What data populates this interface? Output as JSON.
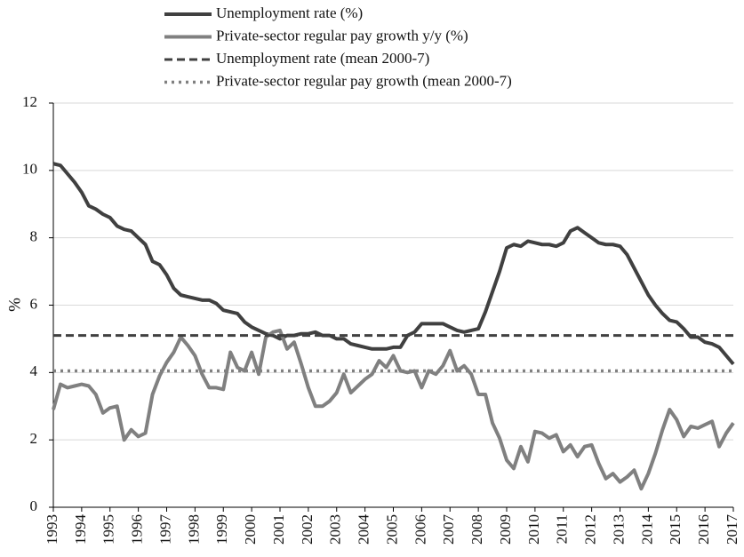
{
  "chart_data": {
    "type": "line",
    "ylabel": "%",
    "xlim": [
      1993,
      2017
    ],
    "xticks": [
      1993,
      1994,
      1995,
      1996,
      1997,
      1998,
      1999,
      2000,
      2001,
      2002,
      2003,
      2004,
      2005,
      2006,
      2007,
      2008,
      2009,
      2010,
      2011,
      2012,
      2013,
      2014,
      2015,
      2016,
      2017
    ],
    "ylim": [
      0,
      12
    ],
    "yticks": [
      0,
      2,
      4,
      6,
      8,
      10,
      12
    ],
    "grid": true,
    "x": [
      1993,
      1993.25,
      1993.5,
      1993.75,
      1994,
      1994.25,
      1994.5,
      1994.75,
      1995,
      1995.25,
      1995.5,
      1995.75,
      1996,
      1996.25,
      1996.5,
      1996.75,
      1997,
      1997.25,
      1997.5,
      1997.75,
      1998,
      1998.25,
      1998.5,
      1998.75,
      1999,
      1999.25,
      1999.5,
      1999.75,
      2000,
      2000.25,
      2000.5,
      2000.75,
      2001,
      2001.25,
      2001.5,
      2001.75,
      2002,
      2002.25,
      2002.5,
      2002.75,
      2003,
      2003.25,
      2003.5,
      2003.75,
      2004,
      2004.25,
      2004.5,
      2004.75,
      2005,
      2005.25,
      2005.5,
      2005.75,
      2006,
      2006.25,
      2006.5,
      2006.75,
      2007,
      2007.25,
      2007.5,
      2007.75,
      2008,
      2008.25,
      2008.5,
      2008.75,
      2009,
      2009.25,
      2009.5,
      2009.75,
      2010,
      2010.25,
      2010.5,
      2010.75,
      2011,
      2011.25,
      2011.5,
      2011.75,
      2012,
      2012.25,
      2012.5,
      2012.75,
      2013,
      2013.25,
      2013.5,
      2013.75,
      2014,
      2014.25,
      2014.5,
      2014.75,
      2015,
      2015.25,
      2015.5,
      2015.75,
      2016,
      2016.25,
      2016.5,
      2016.75,
      2017
    ],
    "series": [
      {
        "name": "Unemployment rate (%)",
        "color": "#404040",
        "style": "solid",
        "values": [
          10.2,
          10.15,
          9.9,
          9.65,
          9.35,
          8.95,
          8.85,
          8.7,
          8.6,
          8.35,
          8.25,
          8.2,
          8.0,
          7.8,
          7.3,
          7.2,
          6.9,
          6.5,
          6.3,
          6.25,
          6.2,
          6.15,
          6.15,
          6.05,
          5.85,
          5.8,
          5.75,
          5.5,
          5.35,
          5.25,
          5.15,
          5.1,
          5.0,
          5.1,
          5.1,
          5.15,
          5.15,
          5.2,
          5.1,
          5.1,
          5.0,
          5.0,
          4.85,
          4.8,
          4.75,
          4.7,
          4.7,
          4.7,
          4.75,
          4.75,
          5.1,
          5.2,
          5.45,
          5.45,
          5.45,
          5.45,
          5.35,
          5.25,
          5.2,
          5.25,
          5.3,
          5.8,
          6.4,
          7.0,
          7.7,
          7.8,
          7.75,
          7.9,
          7.85,
          7.8,
          7.8,
          7.75,
          7.85,
          8.2,
          8.3,
          8.15,
          8.0,
          7.85,
          7.8,
          7.8,
          7.75,
          7.5,
          7.1,
          6.7,
          6.3,
          6.0,
          5.75,
          5.55,
          5.5,
          5.3,
          5.05,
          5.05,
          4.9,
          4.85,
          4.75,
          4.5,
          4.25
        ]
      },
      {
        "name": "Private-sector regular pay growth y/y (%)",
        "color": "#808080",
        "style": "solid",
        "values": [
          2.9,
          3.65,
          3.55,
          3.6,
          3.65,
          3.6,
          3.35,
          2.8,
          2.95,
          3.0,
          2.0,
          2.3,
          2.1,
          2.2,
          3.35,
          3.9,
          4.3,
          4.6,
          5.05,
          4.8,
          4.5,
          3.95,
          3.55,
          3.55,
          3.5,
          4.6,
          4.15,
          4.05,
          4.6,
          3.95,
          5.05,
          5.2,
          5.25,
          4.7,
          4.9,
          4.25,
          3.55,
          3.0,
          3.0,
          3.15,
          3.4,
          3.95,
          3.4,
          3.6,
          3.8,
          3.95,
          4.35,
          4.15,
          4.5,
          4.05,
          4.0,
          4.05,
          3.55,
          4.05,
          3.95,
          4.2,
          4.65,
          4.05,
          4.2,
          3.95,
          3.35,
          3.35,
          2.5,
          2.05,
          1.4,
          1.15,
          1.8,
          1.35,
          2.25,
          2.2,
          2.05,
          2.15,
          1.65,
          1.85,
          1.5,
          1.8,
          1.85,
          1.3,
          0.85,
          1.0,
          0.75,
          0.9,
          1.1,
          0.55,
          1.0,
          1.6,
          2.3,
          2.9,
          2.6,
          2.1,
          2.4,
          2.35,
          2.45,
          2.55,
          1.8,
          2.2,
          2.5
        ]
      },
      {
        "name": "Unemployment rate (mean 2000-7)",
        "color": "#404040",
        "style": "dashed",
        "value": 5.1
      },
      {
        "name": "Private-sector regular pay growth (mean 2000-7)",
        "color": "#808080",
        "style": "dotted",
        "value": 4.05
      }
    ]
  }
}
